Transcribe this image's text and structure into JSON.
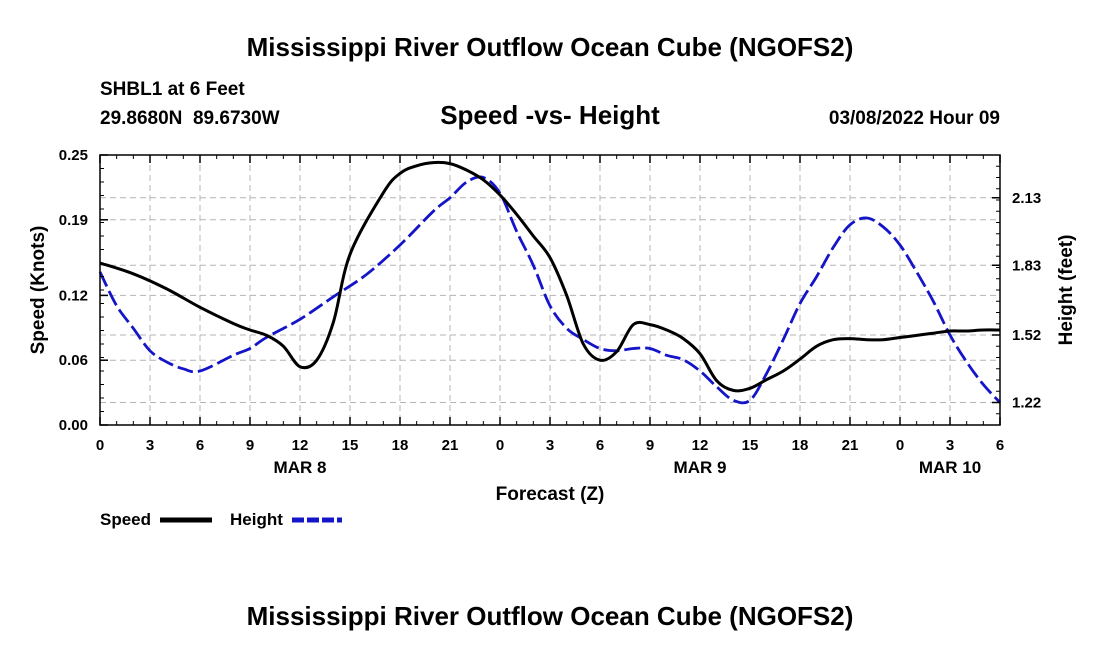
{
  "header": {
    "title_top": "Mississippi River Outflow Ocean Cube (NGOFS2)",
    "station": "SHBL1 at 6 Feet",
    "coords": "29.8680N  89.6730W",
    "subtitle": "Speed -vs- Height",
    "datetime": "03/08/2022 Hour 09",
    "title_bottom": "Mississippi River Outflow Ocean Cube (NGOFS2)"
  },
  "legend": {
    "items": [
      {
        "label": "Speed",
        "color": "#000000",
        "style": "solid"
      },
      {
        "label": "Height",
        "color": "#1414c8",
        "style": "dashed"
      }
    ]
  },
  "chart_data": {
    "type": "line",
    "xlabel": "Forecast (Z)",
    "ylabel": "Speed (Knots)",
    "y2label": "Height (feet)",
    "xlim": [
      0,
      54
    ],
    "ylim": [
      0,
      0.25
    ],
    "y2lim": [
      1.12,
      2.32
    ],
    "grid": true,
    "x_tick_values": [
      0,
      3,
      6,
      9,
      12,
      15,
      18,
      21,
      24,
      27,
      30,
      33,
      36,
      39,
      42,
      45,
      48,
      51,
      54
    ],
    "x_tick_labels": [
      "0",
      "3",
      "6",
      "9",
      "12",
      "15",
      "18",
      "21",
      "0",
      "3",
      "6",
      "9",
      "12",
      "15",
      "18",
      "21",
      "0",
      "3",
      "6"
    ],
    "y_ticks": [
      0.0,
      0.06,
      0.12,
      0.19,
      0.25
    ],
    "y_tick_labels": [
      "0.00",
      "0.06",
      "0.12",
      "0.19",
      "0.25"
    ],
    "y2_ticks": [
      1.22,
      1.52,
      1.83,
      2.13
    ],
    "y2_tick_labels": [
      "1.22",
      "1.52",
      "1.83",
      "2.13"
    ],
    "date_labels": [
      {
        "x": 12,
        "text": "MAR 8"
      },
      {
        "x": 36,
        "text": "MAR 9"
      },
      {
        "x": 51,
        "text": "MAR 10"
      }
    ],
    "series": [
      {
        "name": "Speed",
        "axis": "left",
        "x": [
          0,
          2,
          4,
          6,
          8,
          9,
          10,
          11,
          12,
          13,
          14,
          15,
          17,
          18,
          19,
          20,
          21,
          22,
          23,
          24,
          25,
          26,
          27,
          28,
          29,
          30,
          31,
          32,
          33,
          34,
          35,
          36,
          37,
          38,
          39,
          40,
          41,
          42,
          43,
          44,
          45,
          46,
          47,
          48,
          49,
          50,
          51,
          52,
          53,
          54
        ],
        "values": [
          0.15,
          0.14,
          0.126,
          0.109,
          0.094,
          0.088,
          0.083,
          0.073,
          0.054,
          0.06,
          0.095,
          0.158,
          0.215,
          0.233,
          0.24,
          0.243,
          0.242,
          0.236,
          0.227,
          0.213,
          0.195,
          0.175,
          0.155,
          0.12,
          0.075,
          0.06,
          0.068,
          0.093,
          0.093,
          0.088,
          0.08,
          0.066,
          0.041,
          0.032,
          0.034,
          0.042,
          0.05,
          0.061,
          0.073,
          0.079,
          0.08,
          0.079,
          0.079,
          0.081,
          0.083,
          0.085,
          0.087,
          0.087,
          0.088,
          0.088
        ]
      },
      {
        "name": "Height",
        "axis": "right",
        "x": [
          0,
          1,
          2,
          3,
          4,
          5,
          6,
          8,
          9,
          10,
          12,
          14,
          16,
          18,
          20,
          21,
          22,
          23,
          24,
          25,
          26,
          27,
          28,
          29,
          30,
          31,
          32,
          33,
          34,
          35,
          36,
          37,
          38,
          39,
          40,
          41,
          42,
          43,
          44,
          45,
          46,
          47,
          48,
          49,
          50,
          51,
          52,
          53,
          54
        ],
        "values": [
          1.8,
          1.65,
          1.55,
          1.45,
          1.4,
          1.37,
          1.36,
          1.43,
          1.46,
          1.51,
          1.59,
          1.69,
          1.79,
          1.92,
          2.07,
          2.13,
          2.2,
          2.22,
          2.15,
          1.98,
          1.83,
          1.65,
          1.55,
          1.5,
          1.46,
          1.45,
          1.46,
          1.46,
          1.43,
          1.41,
          1.36,
          1.29,
          1.23,
          1.23,
          1.35,
          1.5,
          1.66,
          1.78,
          1.91,
          2.01,
          2.04,
          2.0,
          1.92,
          1.8,
          1.67,
          1.52,
          1.4,
          1.3,
          1.22
        ]
      }
    ]
  }
}
